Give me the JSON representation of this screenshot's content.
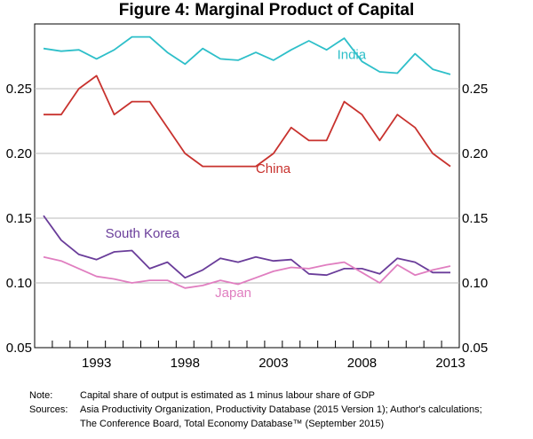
{
  "chart_data": {
    "type": "line",
    "title": "Figure 4: Marginal Product of Capital",
    "xlabel": "",
    "ylabel": "",
    "xlim": [
      1989.5,
      2013.5
    ],
    "ylim": [
      0.05,
      0.3
    ],
    "yticks": [
      0.05,
      0.1,
      0.15,
      0.2,
      0.25
    ],
    "ytick_labels": [
      "0.05",
      "0.10",
      "0.15",
      "0.20",
      "0.25"
    ],
    "xtick_labels": [
      {
        "year": 1993,
        "label": "1993"
      },
      {
        "year": 1998,
        "label": "1998"
      },
      {
        "year": 2003,
        "label": "2003"
      },
      {
        "year": 2008,
        "label": "2008"
      },
      {
        "year": 2013,
        "label": "2013"
      }
    ],
    "x": [
      1990,
      1991,
      1992,
      1993,
      1994,
      1995,
      1996,
      1997,
      1998,
      1999,
      2000,
      2001,
      2002,
      2003,
      2004,
      2005,
      2006,
      2007,
      2008,
      2009,
      2010,
      2011,
      2012,
      2013
    ],
    "series": [
      {
        "name": "India",
        "label": "India",
        "color": "#2ebfc9",
        "label_pos": [
          2006.6,
          0.273
        ],
        "values": [
          0.281,
          0.279,
          0.28,
          0.273,
          0.28,
          0.29,
          0.29,
          0.278,
          0.269,
          0.281,
          0.273,
          0.272,
          0.278,
          0.272,
          0.28,
          0.287,
          0.28,
          0.289,
          0.271,
          0.263,
          0.262,
          0.277,
          0.265,
          0.261
        ]
      },
      {
        "name": "China",
        "label": "China",
        "color": "#c8322e",
        "label_pos": [
          2002.0,
          0.185
        ],
        "values": [
          0.23,
          0.23,
          0.25,
          0.26,
          0.23,
          0.24,
          0.24,
          0.22,
          0.2,
          0.19,
          0.19,
          0.19,
          0.19,
          0.2,
          0.22,
          0.21,
          0.21,
          0.24,
          0.23,
          0.21,
          0.23,
          0.22,
          0.2,
          0.19
        ]
      },
      {
        "name": "South Korea",
        "label": "South Korea",
        "color": "#6a3d9a",
        "label_pos": [
          1993.5,
          0.135
        ],
        "values": [
          0.152,
          0.133,
          0.122,
          0.118,
          0.124,
          0.125,
          0.111,
          0.116,
          0.104,
          0.11,
          0.119,
          0.116,
          0.12,
          0.117,
          0.118,
          0.107,
          0.106,
          0.111,
          0.111,
          0.107,
          0.119,
          0.116,
          0.108,
          0.108
        ]
      },
      {
        "name": "Japan",
        "label": "Japan",
        "color": "#e07ec0",
        "label_pos": [
          1999.7,
          0.089
        ],
        "values": [
          0.12,
          0.117,
          0.111,
          0.105,
          0.103,
          0.1,
          0.102,
          0.102,
          0.096,
          0.098,
          0.102,
          0.099,
          0.104,
          0.109,
          0.112,
          0.111,
          0.114,
          0.116,
          0.108,
          0.1,
          0.114,
          0.106,
          0.11,
          0.113
        ]
      }
    ]
  },
  "notes": [
    {
      "key": "Note:",
      "lines": [
        "Capital share of output is estimated as 1 minus labour share of GDP"
      ]
    },
    {
      "key": "Sources:",
      "lines": [
        "Asia Productivity Organization, Productivity Database (2015 Version 1); Author's calculations;",
        "The Conference Board, Total Economy Database™ (September 2015)"
      ]
    }
  ]
}
